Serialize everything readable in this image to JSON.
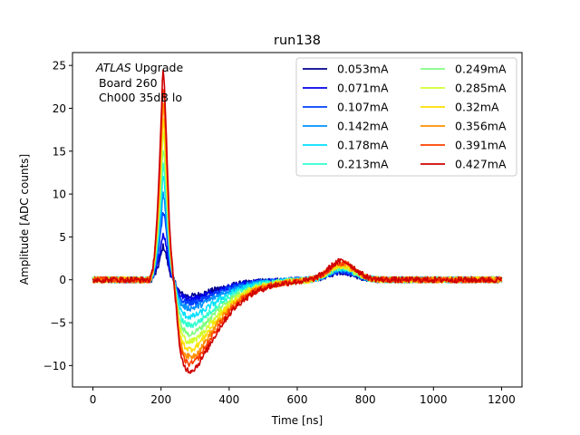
{
  "chart_data": {
    "type": "line",
    "title": "run138",
    "xlabel": "Time [ns]",
    "ylabel": "Amplitude [ADC counts]",
    "xlim": [
      -60,
      1260
    ],
    "ylim": [
      -12.5,
      26.5
    ],
    "xticks": [
      0,
      200,
      400,
      600,
      800,
      1000,
      1200
    ],
    "yticks": [
      -10,
      -5,
      0,
      5,
      10,
      15,
      20,
      25
    ],
    "grid": false,
    "legend_position": "top-right",
    "legend_columns": 2,
    "annotation": {
      "line1_italic": "ATLAS",
      "line1_rest": " Upgrade",
      "line2": "Board 260",
      "line3": "Ch000 35dB lo"
    },
    "series": [
      {
        "name": "0.053mA",
        "color": "#00008f",
        "peak": 3.9,
        "undershoot": -1.9,
        "bump": 0.9,
        "noise": 0.35
      },
      {
        "name": "0.071mA",
        "color": "#0000ef",
        "peak": 5.4,
        "undershoot": -2.2,
        "bump": 1.0,
        "noise": 0.35
      },
      {
        "name": "0.107mA",
        "color": "#0040ff",
        "peak": 7.9,
        "undershoot": -2.7,
        "bump": 1.1,
        "noise": 0.35
      },
      {
        "name": "0.142mA",
        "color": "#0090ff",
        "peak": 9.9,
        "undershoot": -3.3,
        "bump": 1.2,
        "noise": 0.35
      },
      {
        "name": "0.178mA",
        "color": "#00dfff",
        "peak": 12.0,
        "undershoot": -4.3,
        "bump": 1.3,
        "noise": 0.35
      },
      {
        "name": "0.213mA",
        "color": "#30ffcf",
        "peak": 13.6,
        "undershoot": -5.3,
        "bump": 1.4,
        "noise": 0.35
      },
      {
        "name": "0.249mA",
        "color": "#80ff80",
        "peak": 15.3,
        "undershoot": -6.3,
        "bump": 1.5,
        "noise": 0.35
      },
      {
        "name": "0.285mA",
        "color": "#cfff30",
        "peak": 17.0,
        "undershoot": -7.2,
        "bump": 1.6,
        "noise": 0.35
      },
      {
        "name": "0.32mA",
        "color": "#ffdf00",
        "peak": 18.8,
        "undershoot": -8.1,
        "bump": 1.7,
        "noise": 0.35
      },
      {
        "name": "0.356mA",
        "color": "#ff9000",
        "peak": 20.6,
        "undershoot": -9.0,
        "bump": 1.9,
        "noise": 0.35
      },
      {
        "name": "0.391mA",
        "color": "#ff4000",
        "peak": 22.5,
        "undershoot": -9.8,
        "bump": 2.0,
        "noise": 0.35
      },
      {
        "name": "0.427mA",
        "color": "#cf0000",
        "peak": 24.3,
        "undershoot": -10.6,
        "bump": 2.2,
        "noise": 0.35
      }
    ]
  }
}
